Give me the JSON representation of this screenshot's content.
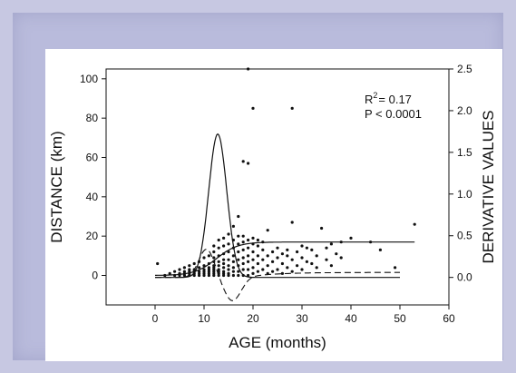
{
  "chart_data": {
    "type": "scatter",
    "xlabel": "AGE (months)",
    "ylabel": "DISTANCE (km)",
    "y2label": "DERIVATIVE VALUES",
    "xlim": [
      -10,
      60
    ],
    "ylim": [
      -15,
      105
    ],
    "y2lim": [
      -0.33,
      2.5
    ],
    "xticks": [
      0,
      10,
      20,
      30,
      40,
      50,
      60
    ],
    "yticks": [
      0,
      20,
      40,
      60,
      80,
      100
    ],
    "y2ticks": [
      "0.0",
      "0.5",
      "1.0",
      "1.5",
      "2.0",
      "2.5"
    ],
    "annotation": {
      "r2_text": "R",
      "r2_sup": "2",
      "r2_rest": "= 0.17",
      "p_text": "P < 0.0001"
    },
    "grid": false,
    "points": [
      [
        0.5,
        6
      ],
      [
        2,
        0
      ],
      [
        3,
        1
      ],
      [
        4,
        0
      ],
      [
        4,
        2
      ],
      [
        5,
        0
      ],
      [
        5,
        1
      ],
      [
        5,
        3
      ],
      [
        6,
        0
      ],
      [
        6,
        1
      ],
      [
        6,
        2
      ],
      [
        6,
        4
      ],
      [
        7,
        0
      ],
      [
        7,
        1
      ],
      [
        7,
        2
      ],
      [
        7,
        3
      ],
      [
        7,
        5
      ],
      [
        8,
        0
      ],
      [
        8,
        1
      ],
      [
        8,
        2
      ],
      [
        8,
        3
      ],
      [
        8,
        6
      ],
      [
        9,
        0
      ],
      [
        9,
        1
      ],
      [
        9,
        2
      ],
      [
        9,
        4
      ],
      [
        9,
        7
      ],
      [
        10,
        0
      ],
      [
        10,
        1
      ],
      [
        10,
        2
      ],
      [
        10,
        3
      ],
      [
        10,
        5
      ],
      [
        10,
        9
      ],
      [
        11,
        0
      ],
      [
        11,
        1
      ],
      [
        11,
        2
      ],
      [
        11,
        3
      ],
      [
        11,
        4
      ],
      [
        11,
        6
      ],
      [
        11,
        10
      ],
      [
        12,
        0
      ],
      [
        12,
        1
      ],
      [
        12,
        2
      ],
      [
        12,
        3
      ],
      [
        12,
        4
      ],
      [
        12,
        5
      ],
      [
        12,
        7
      ],
      [
        12,
        9
      ],
      [
        12,
        12
      ],
      [
        12,
        15
      ],
      [
        13,
        0
      ],
      [
        13,
        1
      ],
      [
        13,
        2
      ],
      [
        13,
        3
      ],
      [
        13,
        5
      ],
      [
        13,
        7
      ],
      [
        13,
        10
      ],
      [
        13,
        14
      ],
      [
        13,
        18
      ],
      [
        14,
        0
      ],
      [
        14,
        1
      ],
      [
        14,
        2
      ],
      [
        14,
        4
      ],
      [
        14,
        6
      ],
      [
        14,
        8
      ],
      [
        14,
        11
      ],
      [
        14,
        15
      ],
      [
        14,
        19
      ],
      [
        15,
        0
      ],
      [
        15,
        1
      ],
      [
        15,
        3
      ],
      [
        15,
        5
      ],
      [
        15,
        8
      ],
      [
        15,
        12
      ],
      [
        15,
        16
      ],
      [
        15,
        21
      ],
      [
        16,
        0
      ],
      [
        16,
        2
      ],
      [
        16,
        4
      ],
      [
        16,
        7
      ],
      [
        16,
        10
      ],
      [
        16,
        14
      ],
      [
        16,
        18
      ],
      [
        16,
        25
      ],
      [
        17,
        0
      ],
      [
        17,
        2
      ],
      [
        17,
        5
      ],
      [
        17,
        8
      ],
      [
        17,
        12
      ],
      [
        17,
        16
      ],
      [
        17,
        20
      ],
      [
        17,
        30
      ],
      [
        18,
        0
      ],
      [
        18,
        3
      ],
      [
        18,
        6
      ],
      [
        18,
        9
      ],
      [
        18,
        13
      ],
      [
        18,
        17
      ],
      [
        18,
        20
      ],
      [
        18,
        58
      ],
      [
        19,
        0
      ],
      [
        19,
        3
      ],
      [
        19,
        7
      ],
      [
        19,
        10
      ],
      [
        19,
        14
      ],
      [
        19,
        18
      ],
      [
        19,
        57
      ],
      [
        19,
        105
      ],
      [
        20,
        1
      ],
      [
        20,
        4
      ],
      [
        20,
        8
      ],
      [
        20,
        12
      ],
      [
        20,
        16
      ],
      [
        20,
        19
      ],
      [
        20,
        85
      ],
      [
        21,
        2
      ],
      [
        21,
        6
      ],
      [
        21,
        10
      ],
      [
        21,
        15
      ],
      [
        21,
        18
      ],
      [
        22,
        3
      ],
      [
        22,
        8
      ],
      [
        22,
        13
      ],
      [
        22,
        17
      ],
      [
        23,
        1
      ],
      [
        23,
        5
      ],
      [
        23,
        10
      ],
      [
        23,
        23
      ],
      [
        24,
        2
      ],
      [
        24,
        7
      ],
      [
        24,
        12
      ],
      [
        25,
        3
      ],
      [
        25,
        9
      ],
      [
        25,
        14
      ],
      [
        26,
        1
      ],
      [
        26,
        6
      ],
      [
        26,
        11
      ],
      [
        27,
        4
      ],
      [
        27,
        10
      ],
      [
        27,
        13
      ],
      [
        28,
        2
      ],
      [
        28,
        8
      ],
      [
        28,
        27
      ],
      [
        28,
        85
      ],
      [
        29,
        5
      ],
      [
        29,
        12
      ],
      [
        30,
        3
      ],
      [
        30,
        9
      ],
      [
        30,
        15
      ],
      [
        31,
        7
      ],
      [
        31,
        14
      ],
      [
        32,
        6
      ],
      [
        32,
        13
      ],
      [
        33,
        4
      ],
      [
        33,
        10
      ],
      [
        34,
        24
      ],
      [
        35,
        8
      ],
      [
        35,
        14
      ],
      [
        36,
        5
      ],
      [
        36,
        16
      ],
      [
        37,
        11
      ],
      [
        38,
        9
      ],
      [
        38,
        17
      ],
      [
        40,
        19
      ],
      [
        44,
        17
      ],
      [
        46,
        13
      ],
      [
        49,
        4
      ],
      [
        53,
        26
      ]
    ],
    "curves": {
      "fitted_distance": "solid",
      "derivative": "solid",
      "secondary_dashed": "dashed"
    }
  }
}
